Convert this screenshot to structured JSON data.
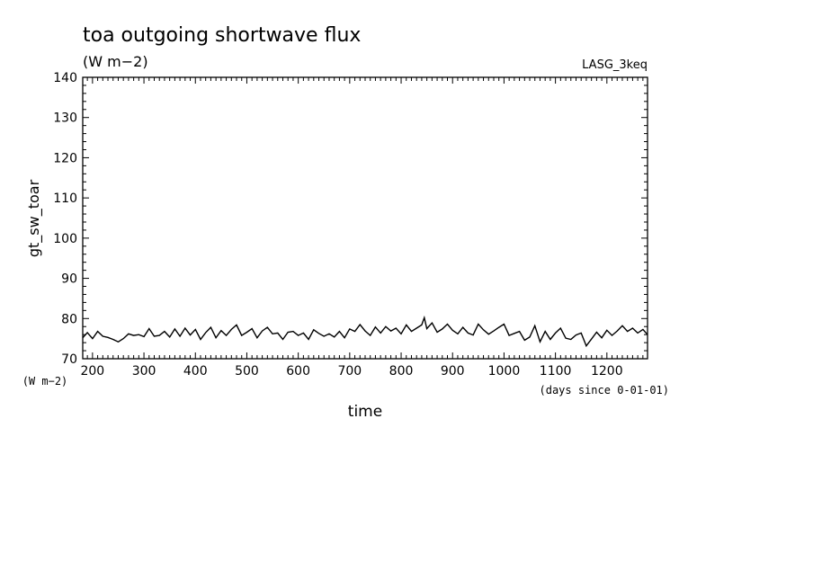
{
  "chart_data": {
    "type": "line",
    "title": "toa outgoing shortwave flux",
    "subtitle": "(W m−2)",
    "annotation": "LASG_3keq",
    "xlabel": "time",
    "x_unit_label": "(days since 0-01-01)",
    "ylabel": "gt_sw_toar",
    "y_unit_label": "(W m−2)",
    "xlim": [
      181,
      1279
    ],
    "ylim": [
      70,
      140
    ],
    "x_ticks": [
      "200",
      "300",
      "400",
      "500",
      "600",
      "700",
      "800",
      "900",
      "1000",
      "1100",
      "1200"
    ],
    "y_ticks": [
      "70",
      "80",
      "90",
      "100",
      "110",
      "120",
      "130",
      "140"
    ],
    "grid": false,
    "line_color": "#000000",
    "series": [
      {
        "x": [
          181,
          190,
          200,
          210,
          220,
          230,
          240,
          250,
          260,
          270,
          280,
          290,
          300,
          310,
          320,
          330,
          340,
          350,
          360,
          370,
          380,
          390,
          400,
          410,
          420,
          430,
          440,
          450,
          460,
          470,
          480,
          490,
          500,
          510,
          520,
          530,
          540,
          550,
          560,
          570,
          580,
          590,
          600,
          610,
          620,
          630,
          640,
          650,
          660,
          670,
          680,
          690,
          700,
          710,
          720,
          730,
          740,
          750,
          760,
          770,
          780,
          790,
          800,
          810,
          820,
          830,
          840,
          845,
          850,
          860,
          870,
          880,
          890,
          900,
          910,
          920,
          930,
          940,
          950,
          960,
          970,
          980,
          990,
          1000,
          1010,
          1020,
          1030,
          1040,
          1050,
          1060,
          1070,
          1080,
          1090,
          1100,
          1110,
          1120,
          1130,
          1140,
          1150,
          1160,
          1170,
          1180,
          1190,
          1200,
          1210,
          1220,
          1230,
          1240,
          1250,
          1260,
          1270,
          1279
        ],
        "y": [
          75.2,
          76.5,
          75.0,
          76.8,
          75.6,
          75.3,
          74.8,
          74.2,
          75.0,
          76.2,
          75.8,
          76.0,
          75.5,
          77.5,
          75.6,
          75.8,
          76.8,
          75.4,
          77.4,
          75.6,
          77.6,
          75.9,
          77.3,
          74.8,
          76.5,
          77.8,
          75.2,
          77.0,
          75.8,
          77.3,
          78.4,
          75.8,
          76.6,
          77.5,
          75.2,
          76.9,
          77.8,
          76.2,
          76.4,
          74.8,
          76.6,
          76.8,
          75.8,
          76.4,
          74.8,
          77.2,
          76.3,
          75.6,
          76.2,
          75.4,
          76.8,
          75.2,
          77.4,
          76.8,
          78.5,
          76.9,
          75.8,
          77.9,
          76.4,
          78.0,
          76.9,
          77.6,
          76.2,
          78.4,
          76.8,
          77.6,
          78.4,
          80.2,
          77.5,
          78.9,
          76.6,
          77.4,
          78.6,
          77.1,
          76.2,
          77.8,
          76.4,
          75.9,
          78.6,
          77.2,
          76.1,
          76.9,
          77.8,
          78.6,
          75.8,
          76.3,
          76.8,
          74.6,
          75.4,
          78.2,
          74.2,
          76.8,
          74.8,
          76.4,
          77.6,
          75.1,
          74.8,
          75.9,
          76.4,
          73.2,
          74.9,
          76.6,
          75.2,
          77.1,
          75.8,
          76.9,
          78.2,
          76.8,
          77.6,
          76.4,
          77.3,
          76.0
        ]
      }
    ]
  }
}
